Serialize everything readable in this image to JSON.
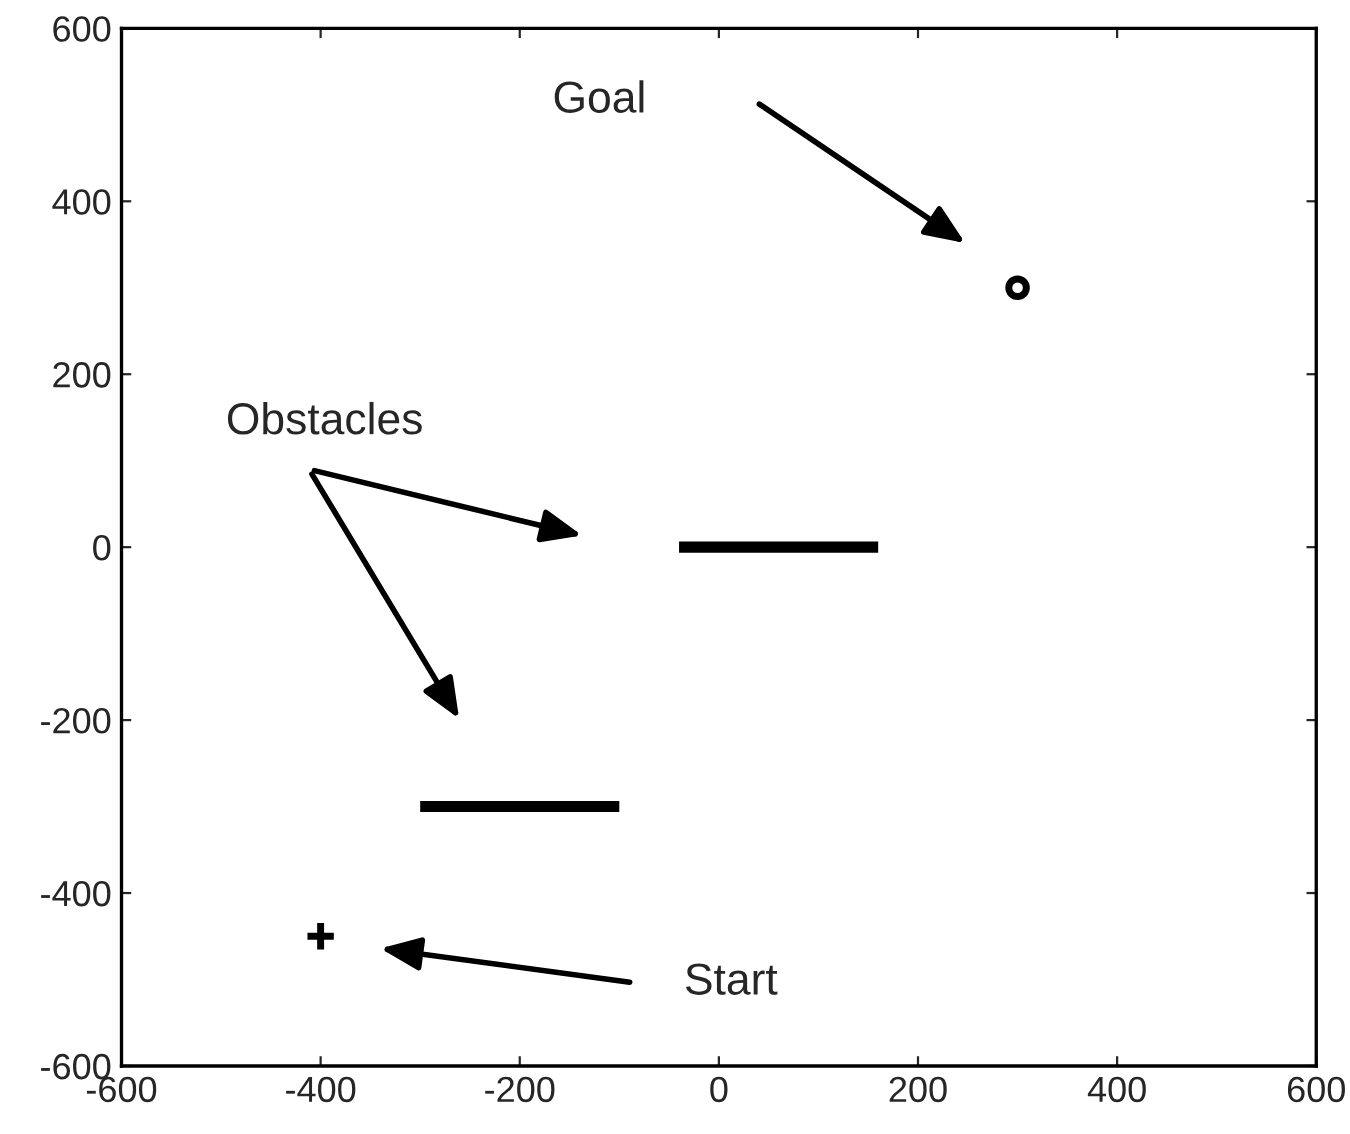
{
  "chart_data": {
    "type": "scatter",
    "xlim": [
      -600,
      600
    ],
    "ylim": [
      -600,
      600
    ],
    "xticks": [
      -600,
      -400,
      -200,
      0,
      200,
      400,
      600
    ],
    "yticks": [
      -600,
      -400,
      -200,
      0,
      200,
      400,
      600
    ],
    "grid": false,
    "legend": false,
    "series": [
      {
        "type": "scatter",
        "marker": "cross",
        "color": "#000000",
        "x": [
          -400
        ],
        "values": [
          -450
        ]
      },
      {
        "type": "scatter",
        "marker": "circle",
        "color": "#000000",
        "x": [
          300
        ],
        "values": [
          300
        ]
      },
      {
        "type": "line",
        "marker": "none",
        "color": "#000000",
        "x": [
          -40,
          160
        ],
        "values": [
          0,
          0
        ]
      },
      {
        "type": "line",
        "marker": "none",
        "color": "#000000",
        "x": [
          -300,
          -100
        ],
        "values": [
          -300,
          -300
        ]
      }
    ],
    "annotations": [
      "Goal",
      "Obstacles",
      "Start"
    ]
  }
}
